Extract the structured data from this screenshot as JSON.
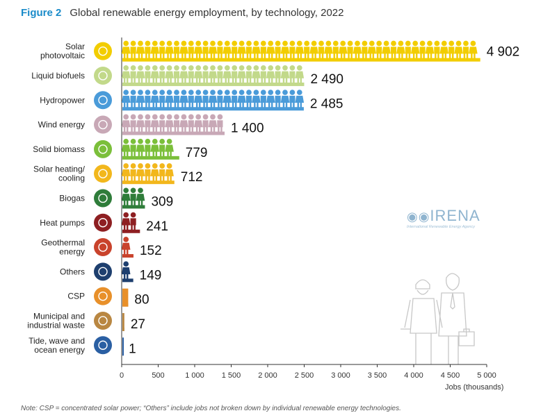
{
  "figure": {
    "number": "Figure 2",
    "title": "Global renewable energy employment, by technology, 2022",
    "note": "Note: CSP = concentrated solar power; “Others” include jobs not broken down by individual renewable energy technologies."
  },
  "watermark": {
    "name": "IRENA",
    "subtitle": "International Renewable Energy Agency"
  },
  "chart_data": {
    "type": "bar",
    "orientation": "horizontal",
    "categories": [
      [
        "Solar",
        "photovoltaic"
      ],
      [
        "Liquid biofuels"
      ],
      [
        "Hydropower"
      ],
      [
        "Wind energy"
      ],
      [
        "Solid biomass"
      ],
      [
        "Solar heating/",
        "cooling"
      ],
      [
        "Biogas"
      ],
      [
        "Heat pumps"
      ],
      [
        "Geothermal",
        "energy"
      ],
      [
        "Others"
      ],
      [
        "CSP"
      ],
      [
        "Municipal and",
        "industrial waste"
      ],
      [
        "Tide, wave and",
        "ocean energy"
      ]
    ],
    "values": [
      4902,
      2490,
      2485,
      1400,
      779,
      712,
      309,
      241,
      152,
      149,
      80,
      27,
      1
    ],
    "value_labels": [
      "4 902",
      "2 490",
      "2 485",
      "1 400",
      "779",
      "712",
      "309",
      "241",
      "152",
      "149",
      "80",
      "27",
      "1"
    ],
    "colors": [
      "#f2cd00",
      "#c2d98a",
      "#4a9bd9",
      "#c8a8b6",
      "#7bbf3a",
      "#f2b71c",
      "#2f7d3a",
      "#8e1f22",
      "#c9432c",
      "#1e3f6e",
      "#e8902a",
      "#b98742",
      "#2a5fa3"
    ],
    "icons": [
      "sun-icon",
      "leaf-icon",
      "water-drop-icon",
      "wind-turbine-icon",
      "leaf-icon",
      "sun-icon",
      "leaf-icon",
      "heat-coil-icon",
      "geothermal-icon",
      "crosshair-icon",
      "sun-icon",
      "waste-bin-icon",
      "wave-icon"
    ],
    "xlabel": "Jobs (thousands)",
    "xlim": [
      0,
      5000
    ],
    "xticks": [
      0,
      500,
      1000,
      1500,
      2000,
      2500,
      3000,
      3500,
      4000,
      4500,
      5000
    ],
    "xtick_labels": [
      "0",
      "500",
      "1 000",
      "1 500",
      "2 000",
      "2 500",
      "3 000",
      "3 500",
      "4 000",
      "4 500",
      "5 000"
    ],
    "grid": false,
    "legend": "none"
  }
}
